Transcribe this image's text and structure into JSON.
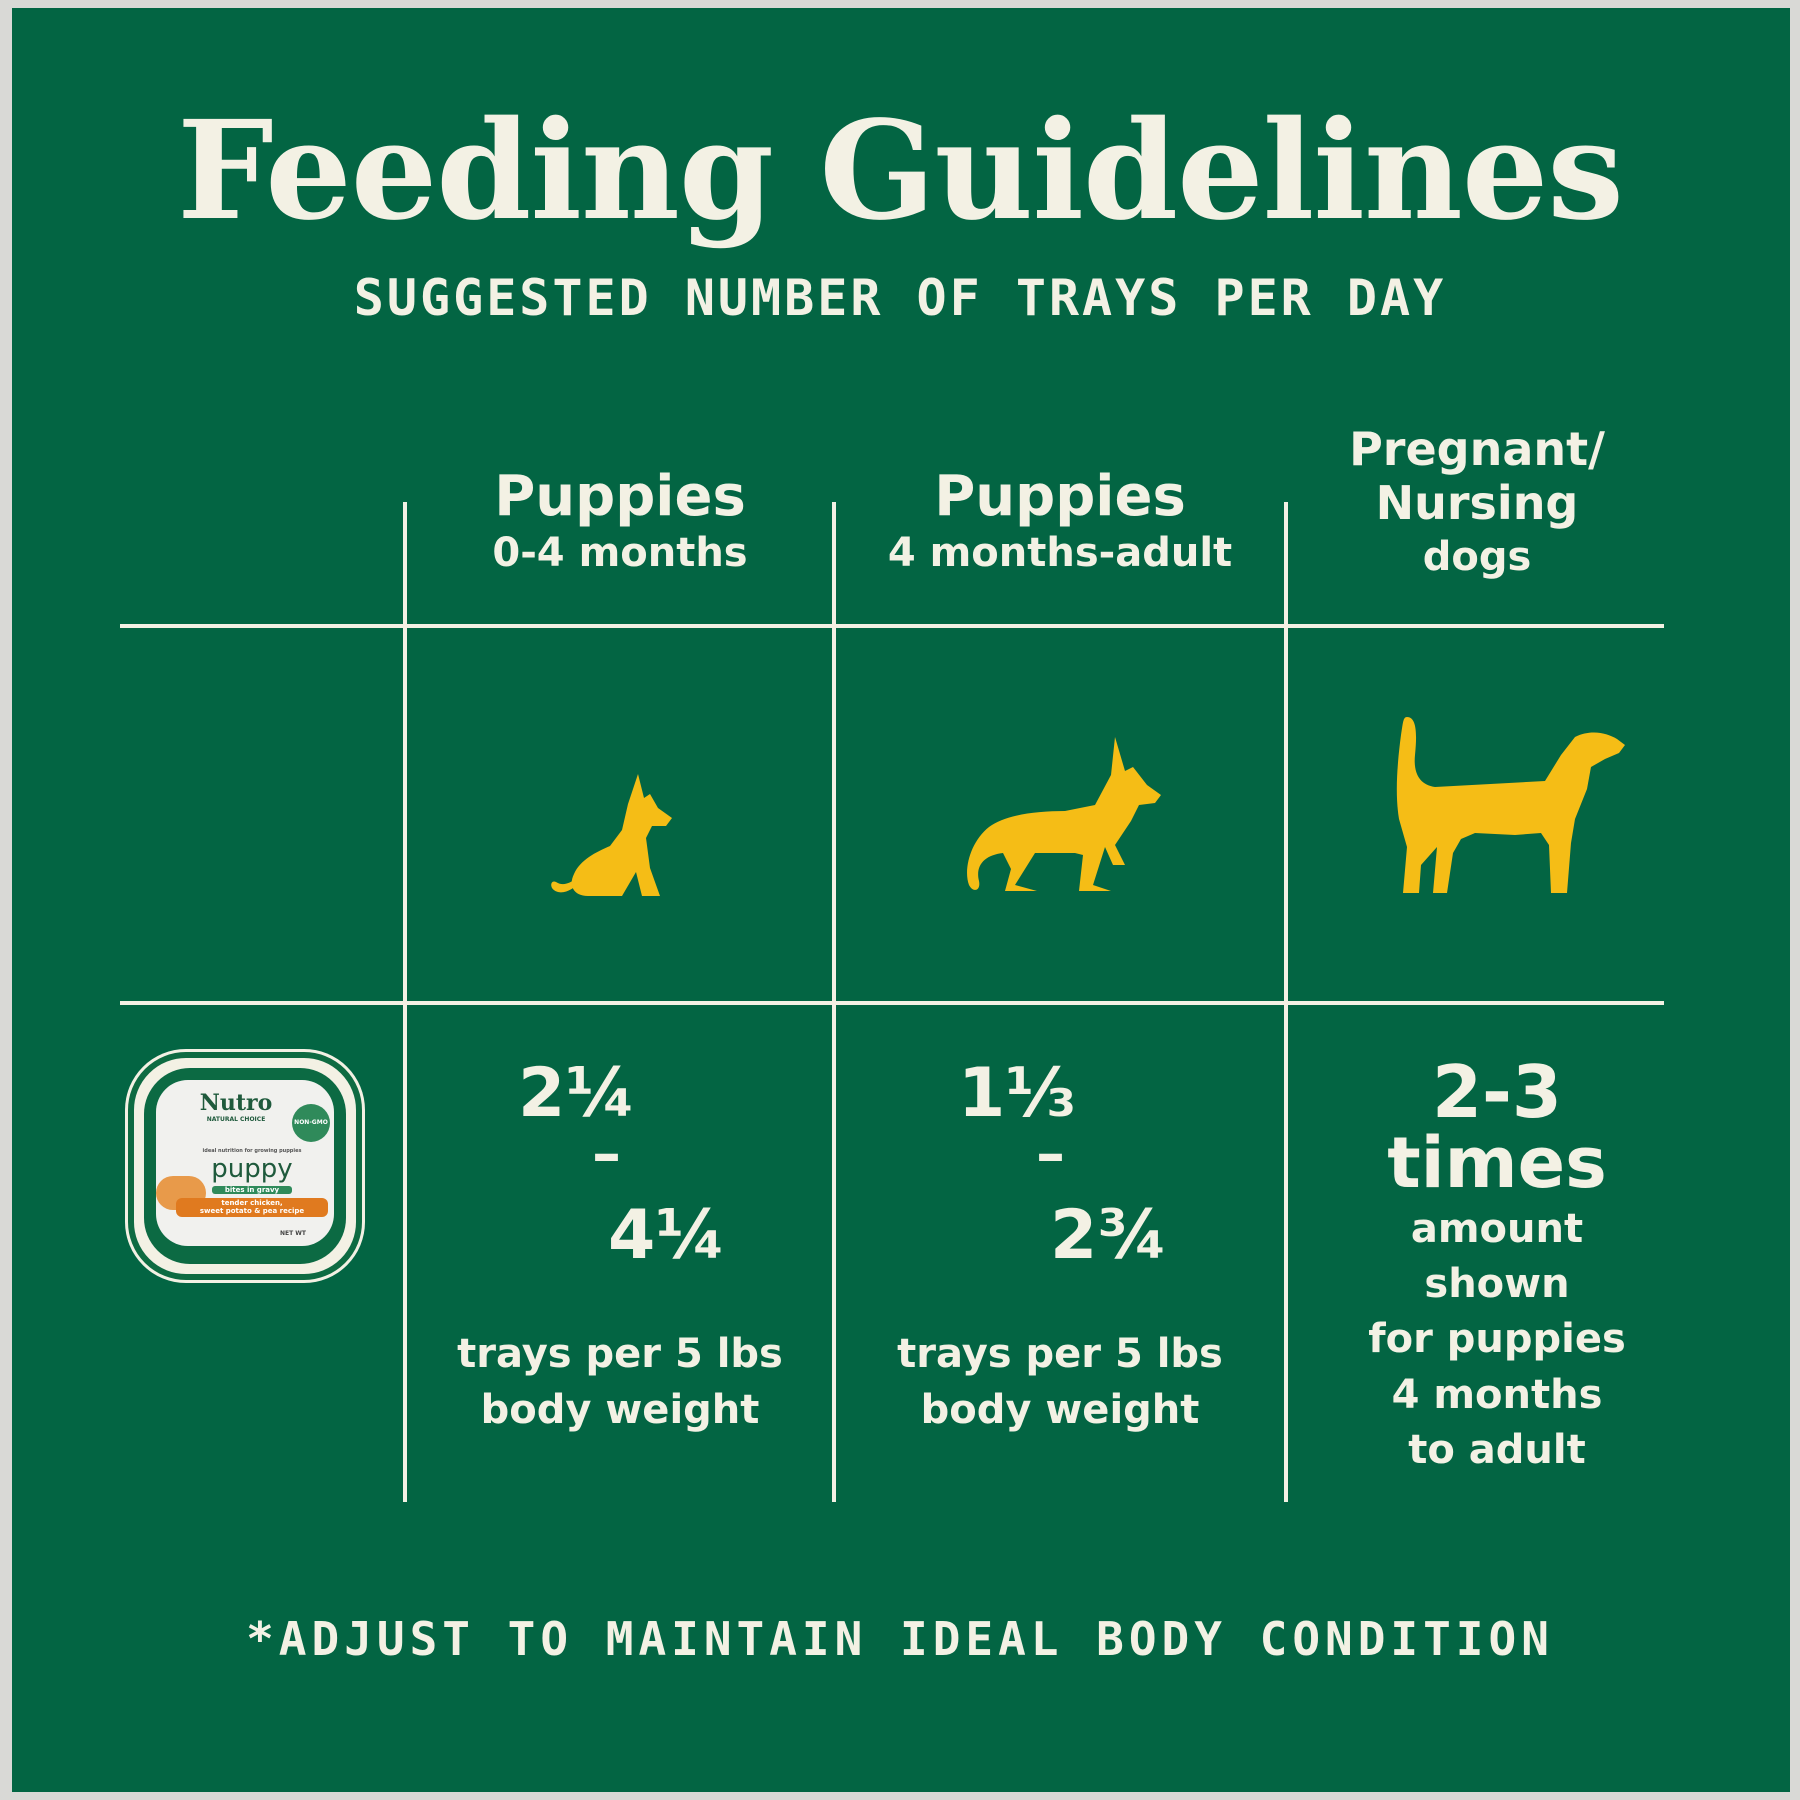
{
  "title": "Feeding Guidelines",
  "subtitle": "SUGGESTED NUMBER OF TRAYS PER DAY",
  "columns": [
    {
      "heading": "Puppies",
      "subheading": "0-4 months",
      "icon": "sitting-puppy-icon",
      "amount_low": "2¼",
      "separator": "–",
      "amount_high": "4¼",
      "note_line1": "trays per 5 lbs",
      "note_line2": "body weight"
    },
    {
      "heading": "Puppies",
      "subheading": "4 months-adult",
      "icon": "standing-young-dog-icon",
      "amount_low": "1⅓",
      "separator": "–",
      "amount_high": "2¾",
      "note_line1": "trays per 5 lbs",
      "note_line2": "body weight"
    },
    {
      "heading_line1": "Pregnant/",
      "heading_line2": "Nursing",
      "heading_line3": "dogs",
      "icon": "standing-adult-dog-icon",
      "amount_line1": "2-3",
      "amount_line2": "times",
      "note_lines": [
        "amount",
        "shown",
        "for puppies",
        "4 months",
        "to adult"
      ]
    }
  ],
  "product": {
    "brand": "Nutro",
    "brand_sub": "NATURAL CHOICE",
    "badge": "NON-GMO",
    "tagline": "ideal nutrition for growing puppies",
    "name": "puppy",
    "style": "bites in gravy",
    "recipe_line1": "tender chicken,",
    "recipe_line2": "sweet potato & pea recipe",
    "net_wt": "NET WT"
  },
  "footer": "*ADJUST TO MAINTAIN IDEAL BODY CONDITION",
  "colors": {
    "background": "#036543",
    "text": "#f3f1e4",
    "icon": "#f5bd16"
  }
}
